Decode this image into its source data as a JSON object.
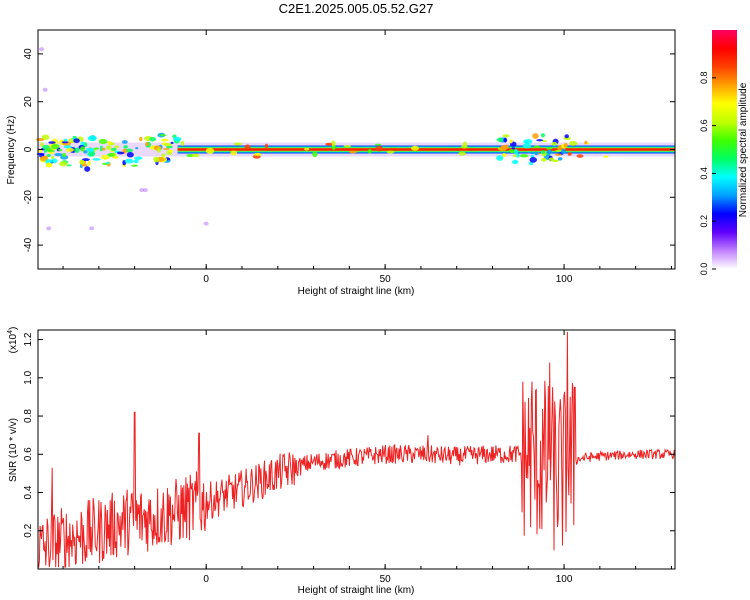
{
  "figure": {
    "title": "C2E1.2025.005.05.52.G27"
  },
  "chart_data": [
    {
      "type": "heatmap",
      "xlabel": "Height of straight line (km)",
      "ylabel": "Frequency (Hz)",
      "xlim": [
        -47,
        131
      ],
      "ylim": [
        -50,
        50
      ],
      "xticks": [
        0,
        50,
        100
      ],
      "yticks": [
        -40,
        -20,
        0,
        20,
        40
      ],
      "colorbar": {
        "label": "Normalized spectral amplitude",
        "range": [
          0,
          1
        ],
        "ticks": [
          "0.0",
          "0.2",
          "0.4",
          "0.6",
          "0.8"
        ],
        "colors": [
          "#ffffff",
          "#c080ff",
          "#6000ff",
          "#0000ff",
          "#00a0ff",
          "#00ffff",
          "#00ff60",
          "#40ff00",
          "#c0ff00",
          "#ffff00",
          "#ffa000",
          "#ff4000",
          "#ff0000",
          "#ff0060"
        ]
      },
      "band": {
        "center_frequency_hz": 0,
        "steady_from_km": 0,
        "scatter_regions_km": [
          [
            -47,
            -8
          ],
          [
            82,
            101
          ]
        ]
      }
    },
    {
      "type": "line",
      "xlabel": "Height of straight line (km)",
      "ylabel": "SNR (10 * v/v)",
      "scale_label": "(x10",
      "scale_exp": "4",
      "scale_close": ")",
      "xlim": [
        -47,
        131
      ],
      "ylim": [
        0,
        1.25
      ],
      "xticks": [
        0,
        50,
        100
      ],
      "yticks": [
        "0.2",
        "0.4",
        "0.6",
        "0.8",
        "1.0",
        "1.2"
      ],
      "color": "#ee2222",
      "envelope": {
        "x": [
          -47,
          -40,
          -30,
          -22,
          -15,
          -8,
          0,
          10,
          20,
          30,
          40,
          50,
          60,
          70,
          80,
          88,
          92,
          95,
          98,
          100,
          102,
          105,
          110,
          120,
          131
        ],
        "y": [
          0.1,
          0.15,
          0.2,
          0.25,
          0.27,
          0.3,
          0.35,
          0.42,
          0.5,
          0.56,
          0.58,
          0.6,
          0.6,
          0.59,
          0.6,
          0.6,
          0.58,
          0.55,
          0.5,
          0.5,
          0.56,
          0.58,
          0.59,
          0.6,
          0.6
        ]
      },
      "peaks": [
        {
          "x": -43,
          "y": 0.53
        },
        {
          "x": -20,
          "y": 0.82
        },
        {
          "x": -2,
          "y": 0.71
        },
        {
          "x": 62,
          "y": 0.7
        },
        {
          "x": 91,
          "y": 0.98
        },
        {
          "x": 96,
          "y": 1.08
        },
        {
          "x": 101,
          "y": 1.24
        },
        {
          "x": 103,
          "y": 0.95
        }
      ]
    }
  ]
}
